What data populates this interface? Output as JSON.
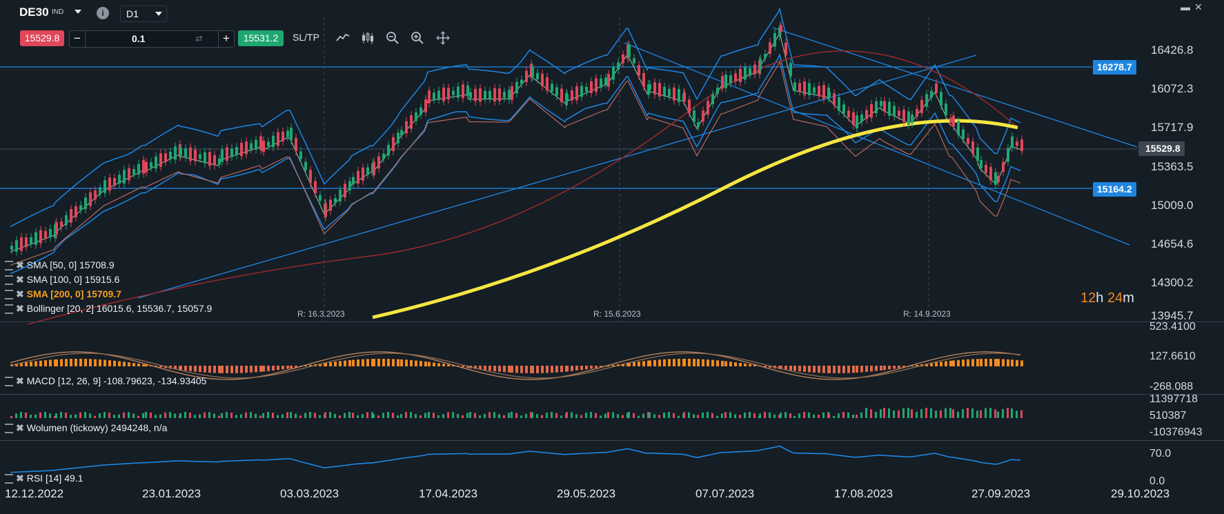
{
  "header": {
    "symbol": "DE30",
    "symbol_type": "IND",
    "info_icon": "info-icon",
    "timeframe": "D1",
    "window_controls": [
      "minimize-icon",
      "close-icon"
    ]
  },
  "trade_bar": {
    "sell_price": "15529.8",
    "volume_value": "0.1",
    "minus_label": "−",
    "plus_label": "+",
    "buy_price": "15531.2",
    "sl_tp_label": "SL/TP",
    "tools": [
      "line-chart-icon",
      "candles-icon",
      "zoom-out-icon",
      "zoom-in-icon",
      "crosshair-move-icon"
    ]
  },
  "colors": {
    "background": "#151d25",
    "bull": "#1fa772",
    "bear": "#e0475a",
    "line": "#1e88e5",
    "sma200": "#f5e642",
    "timer_accent": "#f58b1f"
  },
  "price_axis": {
    "labels": [
      "16426.8",
      "16072.3",
      "15717.9",
      "15363.5",
      "15009.0",
      "14654.6",
      "14300.2",
      "13945.7"
    ],
    "tag_resistance": "16278.7",
    "tag_current": "15529.8",
    "tag_support": "15164.2"
  },
  "indicators": {
    "sma50": "SMA [50, 0] 15708.9",
    "sma100": "SMA [100, 0] 15915.6",
    "sma200": "SMA [200, 0] 15709.7",
    "bollinger": "Bollinger [20, 2] 16015.6, 15536.7, 15057.9",
    "macd": "MACD [12, 26, 9] -108.79623, -134.93405",
    "volume": "Wolumen (tickowy) 2494248, n/a",
    "rsi": "RSI [14] 49.1"
  },
  "rollovers": [
    "R: 16.3.2023",
    "R: 15.6.2023",
    "R: 14.9.2023"
  ],
  "timer": {
    "hours": "12",
    "h": "h",
    "minutes": "24",
    "m": "m"
  },
  "macd_axis": [
    "523.4100",
    "127.6610",
    "-268.088"
  ],
  "volume_axis": [
    "11397718",
    "510387",
    "-10376943"
  ],
  "rsi_axis": [
    "70.0",
    "0.0"
  ],
  "time_axis": [
    "12.12.2022",
    "23.01.2023",
    "03.03.2023",
    "17.04.2023",
    "29.05.2023",
    "07.07.2023",
    "17.08.2023",
    "27.09.2023",
    "29.10.2023"
  ]
}
